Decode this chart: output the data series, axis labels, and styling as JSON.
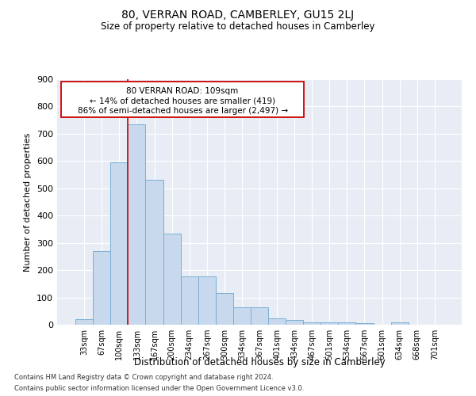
{
  "title": "80, VERRAN ROAD, CAMBERLEY, GU15 2LJ",
  "subtitle": "Size of property relative to detached houses in Camberley",
  "xlabel": "Distribution of detached houses by size in Camberley",
  "ylabel": "Number of detached properties",
  "footer1": "Contains HM Land Registry data © Crown copyright and database right 2024.",
  "footer2": "Contains public sector information licensed under the Open Government Licence v3.0.",
  "categories": [
    "33sqm",
    "67sqm",
    "100sqm",
    "133sqm",
    "167sqm",
    "200sqm",
    "234sqm",
    "267sqm",
    "300sqm",
    "334sqm",
    "367sqm",
    "401sqm",
    "434sqm",
    "467sqm",
    "501sqm",
    "534sqm",
    "567sqm",
    "601sqm",
    "634sqm",
    "668sqm",
    "701sqm"
  ],
  "values": [
    20,
    270,
    595,
    735,
    530,
    335,
    178,
    178,
    115,
    65,
    65,
    22,
    18,
    10,
    8,
    8,
    5,
    0,
    8,
    0,
    0
  ],
  "bar_color": "#c8d9ee",
  "bar_edge_color": "#7aafd4",
  "bg_color": "#e8edf5",
  "grid_color": "#ffffff",
  "property_line_color": "#cc0000",
  "property_line_x": 2.5,
  "annotation_text_line1": "80 VERRAN ROAD: 109sqm",
  "annotation_text_line2": "← 14% of detached houses are smaller (419)",
  "annotation_text_line3": "86% of semi-detached houses are larger (2,497) →",
  "annotation_box_edgecolor": "#cc0000",
  "annotation_box_facecolor": "#ffffff",
  "ylim": [
    0,
    900
  ],
  "yticks": [
    0,
    100,
    200,
    300,
    400,
    500,
    600,
    700,
    800,
    900
  ]
}
